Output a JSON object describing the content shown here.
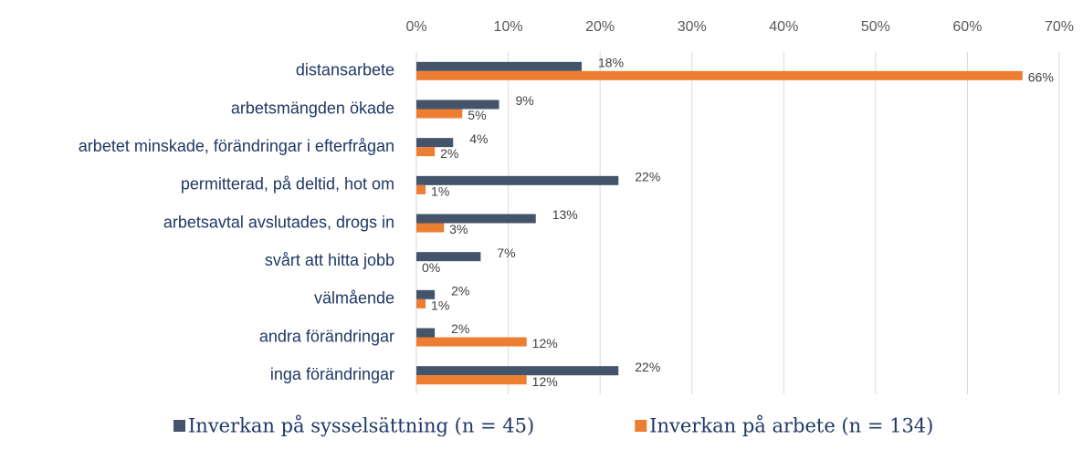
{
  "chart_data": {
    "type": "hbar",
    "categories": [
      "distansarbete",
      "arbetsmängden ökade",
      "arbetet minskade, förändringar i efterfrågan",
      "permitterad, på deltid, hot om",
      "arbetsavtal avslutades, drogs in",
      "svårt att hitta jobb",
      "välmående",
      "andra förändringar",
      "inga förändringar"
    ],
    "series": [
      {
        "name": "Inverkan på sysselsättning (n = 45)",
        "color": "#44546a",
        "values": [
          18,
          9,
          4,
          22,
          13,
          7,
          2,
          2,
          22
        ],
        "value_labels": [
          "18%",
          "9%",
          "4%",
          "22%",
          "13%",
          "7%",
          "2%",
          "2%",
          "22%"
        ]
      },
      {
        "name": "Inverkan på arbete (n = 134)",
        "color": "#ed7d31",
        "values": [
          66,
          5,
          2,
          1,
          3,
          0,
          1,
          12,
          12
        ],
        "value_labels": [
          "66%",
          "5%",
          "2%",
          "1%",
          "3%",
          "0%",
          "1%",
          "12%",
          "12%"
        ]
      }
    ],
    "xlim": [
      0,
      70
    ],
    "xticks": [
      {
        "value": 0,
        "label": "0%"
      },
      {
        "value": 10,
        "label": "10%"
      },
      {
        "value": 20,
        "label": "20%"
      },
      {
        "value": 30,
        "label": "30%"
      },
      {
        "value": 40,
        "label": "40%"
      },
      {
        "value": 50,
        "label": "50%"
      },
      {
        "value": 60,
        "label": "60%"
      },
      {
        "value": 70,
        "label": "70%"
      }
    ],
    "grid": true,
    "legend": "bottom"
  }
}
